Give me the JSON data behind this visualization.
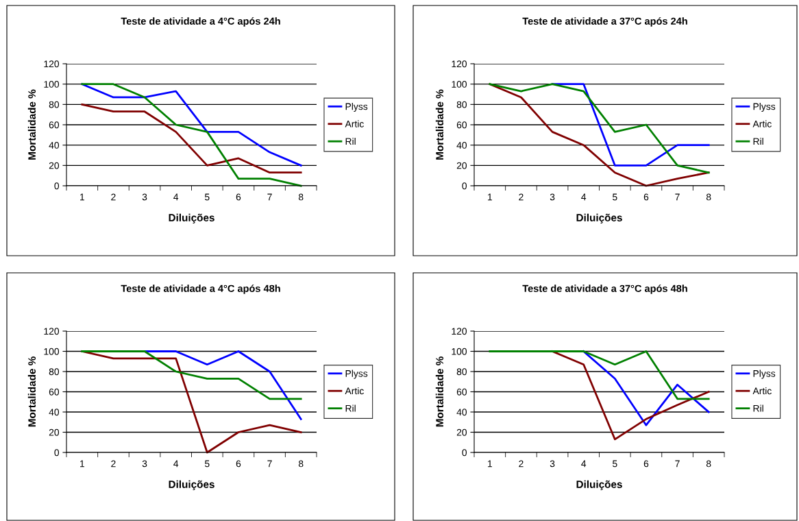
{
  "chart_data": [
    {
      "type": "line",
      "title": "Teste de atividade a 4°C após 24h",
      "xlabel": "Diluições",
      "ylabel": "Mortalidade %",
      "categories": [
        "1",
        "2",
        "3",
        "4",
        "5",
        "6",
        "7",
        "8"
      ],
      "ylim": [
        0,
        120
      ],
      "yticks": [
        0,
        20,
        40,
        60,
        80,
        100,
        120
      ],
      "grid": "y",
      "legend": "right",
      "series": [
        {
          "name": "Plyss",
          "color": "#0000ff",
          "values": [
            100,
            87,
            87,
            93,
            53,
            53,
            33,
            20
          ]
        },
        {
          "name": "Artic",
          "color": "#800000",
          "values": [
            80,
            73,
            73,
            53,
            20,
            27,
            13,
            13
          ]
        },
        {
          "name": "Ril",
          "color": "#008000",
          "values": [
            100,
            100,
            87,
            60,
            53,
            7,
            7,
            0
          ]
        }
      ]
    },
    {
      "type": "line",
      "title": "Teste de atividade a 37°C após 24h",
      "xlabel": "Diluições",
      "ylabel": "Mortalidade %",
      "categories": [
        "1",
        "2",
        "3",
        "4",
        "5",
        "6",
        "7",
        "8"
      ],
      "ylim": [
        0,
        120
      ],
      "yticks": [
        0,
        20,
        40,
        60,
        80,
        100,
        120
      ],
      "grid": "y",
      "legend": "right",
      "series": [
        {
          "name": "Plyss",
          "color": "#0000ff",
          "values": [
            null,
            null,
            100,
            100,
            20,
            20,
            40,
            40
          ]
        },
        {
          "name": "Artic",
          "color": "#800000",
          "values": [
            100,
            87,
            53,
            40,
            13,
            0,
            7,
            13
          ]
        },
        {
          "name": "Ril",
          "color": "#008000",
          "values": [
            100,
            93,
            100,
            93,
            53,
            60,
            20,
            13
          ]
        }
      ]
    },
    {
      "type": "line",
      "title": "Teste de atividade a 4°C após 48h",
      "xlabel": "Diluições",
      "ylabel": "Mortalidade %",
      "categories": [
        "1",
        "2",
        "3",
        "4",
        "5",
        "6",
        "7",
        "8"
      ],
      "ylim": [
        0,
        120
      ],
      "yticks": [
        0,
        20,
        40,
        60,
        80,
        100,
        120
      ],
      "grid": "y",
      "legend": "right",
      "series": [
        {
          "name": "Plyss",
          "color": "#0000ff",
          "values": [
            null,
            null,
            100,
            100,
            87,
            100,
            80,
            33
          ]
        },
        {
          "name": "Artic",
          "color": "#800000",
          "values": [
            100,
            93,
            93,
            93,
            0,
            20,
            27,
            20
          ]
        },
        {
          "name": "Ril",
          "color": "#008000",
          "values": [
            100,
            100,
            100,
            80,
            73,
            73,
            53,
            53
          ]
        }
      ]
    },
    {
      "type": "line",
      "title": "Teste de atividade a 37°C após 48h",
      "xlabel": "Diluições",
      "ylabel": "Mortalidade %",
      "categories": [
        "1",
        "2",
        "3",
        "4",
        "5",
        "6",
        "7",
        "8"
      ],
      "ylim": [
        0,
        120
      ],
      "yticks": [
        0,
        20,
        40,
        60,
        80,
        100,
        120
      ],
      "grid": "y",
      "legend": "right",
      "series": [
        {
          "name": "Plyss",
          "color": "#0000ff",
          "values": [
            null,
            null,
            null,
            100,
            73,
            27,
            67,
            40
          ]
        },
        {
          "name": "Artic",
          "color": "#800000",
          "values": [
            null,
            null,
            100,
            87,
            13,
            33,
            47,
            60
          ]
        },
        {
          "name": "Ril",
          "color": "#008000",
          "values": [
            100,
            100,
            100,
            100,
            87,
            100,
            53,
            53
          ]
        }
      ]
    }
  ]
}
